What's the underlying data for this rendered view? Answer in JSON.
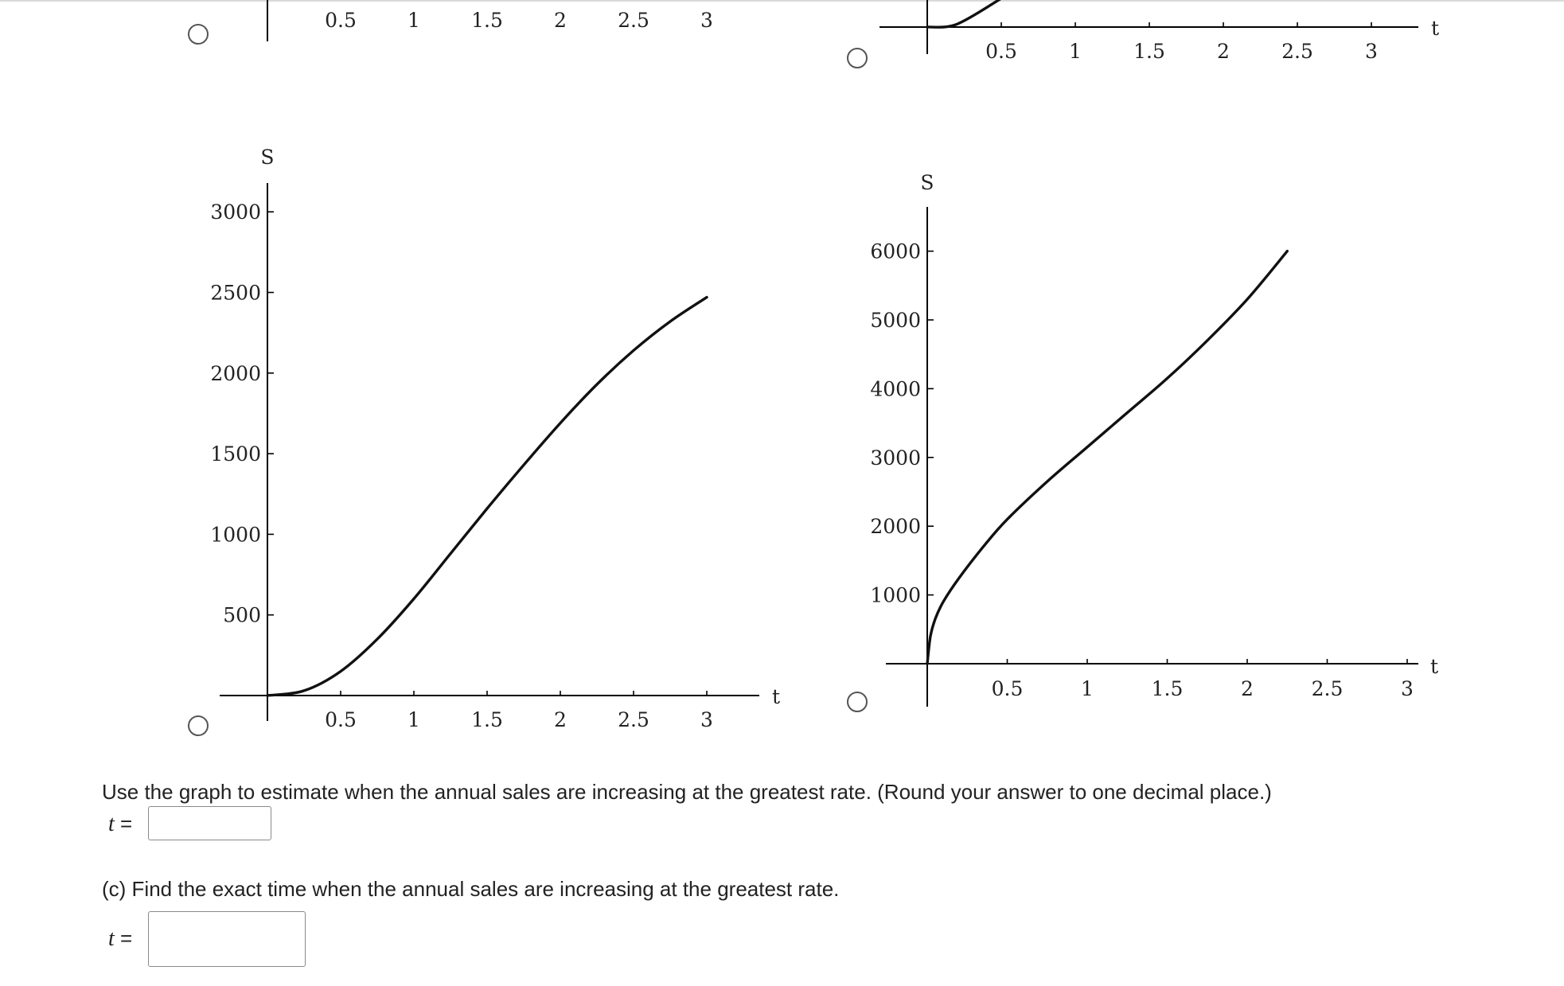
{
  "question_b": {
    "text": "Use the graph to estimate when the annual sales are increasing at the greatest rate. (Round your answer to one decimal place.)",
    "var": "t",
    "eq": "=",
    "value": ""
  },
  "question_c": {
    "text": "(c) Find the exact time when the annual sales are increasing at the greatest rate.",
    "var": "t",
    "eq": "=",
    "value": ""
  },
  "colors": {
    "curve": "#111111",
    "axis": "#000000",
    "text": "#222222",
    "box_border": "#8a8a8a"
  },
  "chart_data": [
    {
      "type": "line",
      "position": "top-left (cropped)",
      "xlabel": "",
      "ylabel": "",
      "x_ticks": [
        "0.5",
        "1",
        "1.5",
        "2",
        "2.5",
        "3"
      ],
      "y_ticks": [],
      "series": [
        {
          "x": [],
          "y": []
        }
      ]
    },
    {
      "type": "line",
      "position": "top-right (cropped)",
      "xlabel": "t",
      "ylabel": "",
      "x_ticks": [
        "0.5",
        "1",
        "1.5",
        "2",
        "2.5",
        "3"
      ],
      "y_ticks": [],
      "xlim": [
        0,
        3.4
      ],
      "series": [
        {
          "x": [
            0,
            0.2,
            0.5
          ],
          "y": [
            0,
            60,
            600
          ]
        }
      ]
    },
    {
      "type": "line",
      "position": "bottom-left",
      "xlabel": "t",
      "ylabel": "S",
      "x_ticks": [
        "0.5",
        "1",
        "1.5",
        "2",
        "2.5",
        "3"
      ],
      "y_ticks": [
        "500",
        "1000",
        "1500",
        "2000",
        "2500",
        "3000"
      ],
      "xlim": [
        0,
        3.3
      ],
      "ylim": [
        0,
        3150
      ],
      "series": [
        {
          "x": [
            0,
            0.25,
            0.5,
            0.75,
            1.0,
            1.25,
            1.5,
            1.75,
            2.0,
            2.25,
            2.5,
            2.75,
            3.0
          ],
          "y": [
            0,
            30,
            150,
            350,
            600,
            880,
            1160,
            1430,
            1690,
            1930,
            2140,
            2320,
            2470
          ]
        }
      ]
    },
    {
      "type": "line",
      "position": "bottom-right",
      "xlabel": "t",
      "ylabel": "S",
      "x_ticks": [
        "0.5",
        "1",
        "1.5",
        "2",
        "2.5",
        "3"
      ],
      "y_ticks": [
        "1000",
        "2000",
        "3000",
        "4000",
        "5000",
        "6000"
      ],
      "xlim": [
        0,
        3.05
      ],
      "ylim": [
        0,
        6500
      ],
      "series": [
        {
          "x": [
            0,
            0.02,
            0.05,
            0.1,
            0.2,
            0.35,
            0.5,
            0.75,
            1.0,
            1.25,
            1.5,
            1.75,
            2.0,
            2.25
          ],
          "y": [
            0,
            400,
            650,
            900,
            1250,
            1700,
            2100,
            2650,
            3150,
            3650,
            4150,
            4700,
            5300,
            6000
          ]
        }
      ]
    }
  ]
}
